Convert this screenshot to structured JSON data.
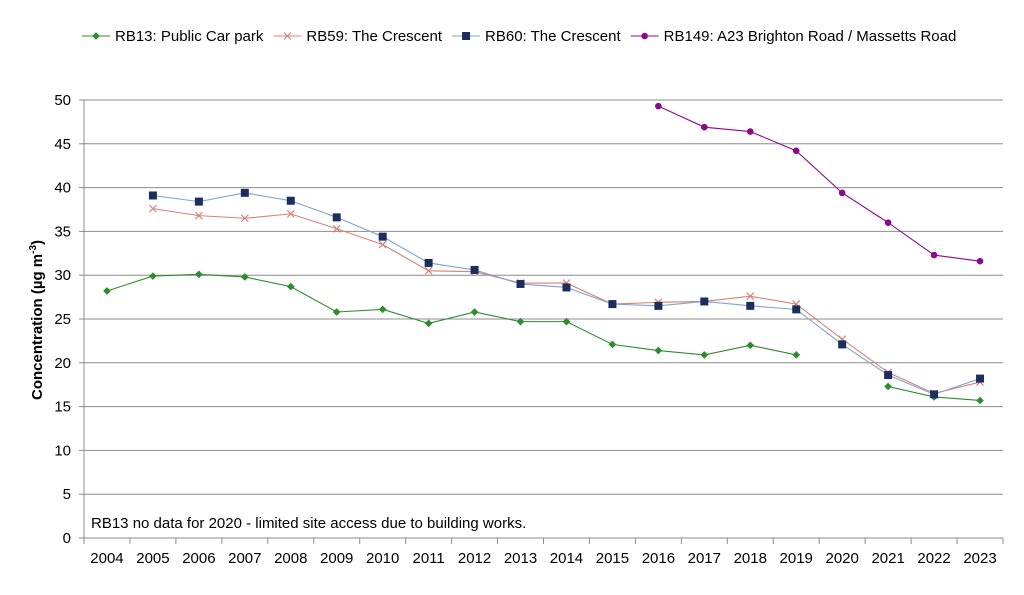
{
  "chart_data": {
    "type": "line",
    "title": "",
    "xlabel": "",
    "ylabel": "Concentration (µg m⁻³)",
    "ylabel_main": "Concentration (µg m",
    "ylabel_sup": "-3",
    "ylabel_close": ")",
    "ylim": [
      0,
      50
    ],
    "yticks": [
      0,
      5,
      10,
      15,
      20,
      25,
      30,
      35,
      40,
      45,
      50
    ],
    "grid": "horizontal",
    "legend_position": "top",
    "categories": [
      "2004",
      "2005",
      "2006",
      "2007",
      "2008",
      "2009",
      "2010",
      "2011",
      "2012",
      "2013",
      "2014",
      "2015",
      "2016",
      "2017",
      "2018",
      "2019",
      "2020",
      "2021",
      "2022",
      "2023"
    ],
    "series": [
      {
        "name": "RB13: Public Car park",
        "color": "#2E8B2E",
        "marker": "diamond",
        "values": [
          28.2,
          29.9,
          30.1,
          29.8,
          28.7,
          25.8,
          26.1,
          24.5,
          25.8,
          24.7,
          24.7,
          22.1,
          21.4,
          20.9,
          22.0,
          20.9,
          null,
          17.3,
          16.1,
          15.7
        ]
      },
      {
        "name": "RB59: The Crescent",
        "color": "#D98078",
        "marker": "x",
        "values": [
          null,
          37.6,
          36.8,
          36.5,
          37.0,
          35.3,
          33.5,
          30.5,
          30.4,
          29.1,
          29.1,
          26.7,
          26.9,
          27.0,
          27.6,
          26.7,
          22.7,
          18.9,
          16.5,
          17.8
        ]
      },
      {
        "name": "RB60: The Crescent",
        "color": "#1B2F5E",
        "line_color": "#7FA3CC",
        "marker": "square",
        "values": [
          null,
          39.1,
          38.4,
          39.4,
          38.5,
          36.6,
          34.4,
          31.4,
          30.6,
          29.0,
          28.6,
          26.7,
          26.5,
          27.0,
          26.5,
          26.1,
          22.1,
          18.6,
          16.4,
          18.2
        ]
      },
      {
        "name": "RB149: A23 Brighton Road / Massetts Road",
        "color": "#8B0A8B",
        "marker": "circle",
        "values": [
          null,
          null,
          null,
          null,
          null,
          null,
          null,
          null,
          null,
          null,
          null,
          null,
          49.3,
          46.9,
          46.4,
          44.2,
          39.4,
          36.0,
          32.3,
          31.6
        ]
      }
    ],
    "annotation": "RB13 no data for 2020 - limited site access due to building works."
  }
}
